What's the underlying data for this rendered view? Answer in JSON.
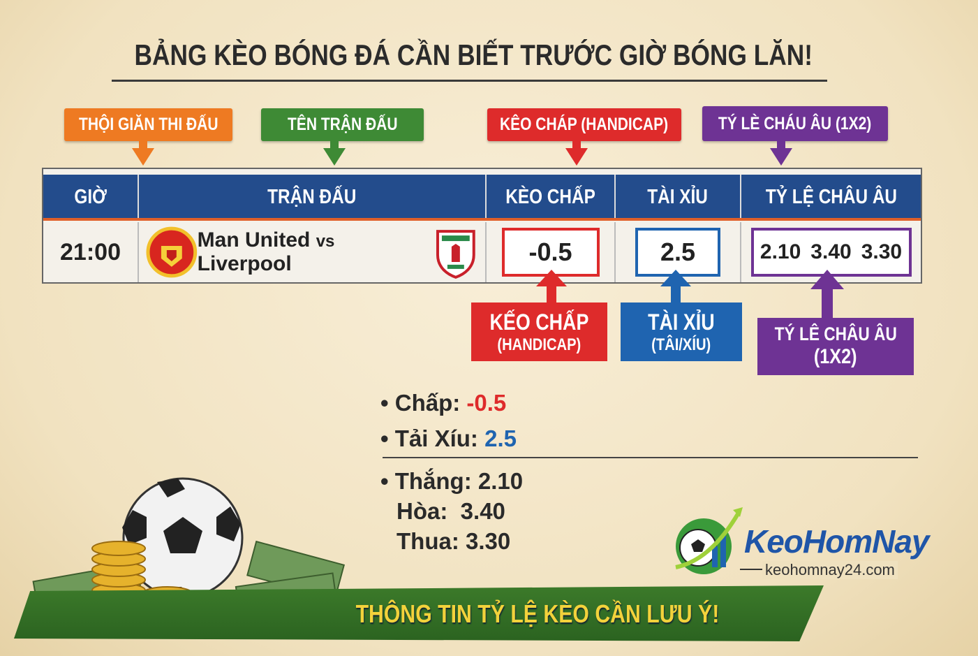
{
  "title": "BẢNG KÈO BÓNG ĐÁ CẦN BIẾT TRƯỚC GIỜ BÓNG LĂN!",
  "top_labels": [
    {
      "text": "THỘI GIĂN THI ĐẤU",
      "color": "#ee7a22"
    },
    {
      "text": "TÊN TRẬN ĐẤU",
      "color": "#3e8a35"
    },
    {
      "text": "KÊO CHÁP (HANDICAP)",
      "color": "#de2b2b"
    },
    {
      "text": "TÝ LÈ CHÁU ÂU (1X2)",
      "color": "#6e3394"
    }
  ],
  "table": {
    "headers": [
      "GIỜ",
      "TRẬN ĐẤU",
      "KÈO CHẤP",
      "TÀI XỈU",
      "TỶ LỆ CHÂU ÂU"
    ],
    "row": {
      "time": "21:00",
      "home": "Man United",
      "vs": "vs",
      "away": "Liverpool",
      "handicap": "-0.5",
      "over_under": "2.5",
      "odds": [
        "2.10",
        "3.40",
        "3.30"
      ]
    }
  },
  "callouts": [
    {
      "line1": "KẾO CHẤP",
      "line2": "(HANDICAP)",
      "color": "#de2b2b"
    },
    {
      "line1": "TÀI XỈU",
      "line2": "(TÂI/XÍU)",
      "color": "#1f64b0"
    },
    {
      "line1": "TÝ LÊ CHÂU ÂU",
      "line2": "(1X2)",
      "color": "#6e3394"
    }
  ],
  "summary": {
    "chap_label": "Chấp:",
    "chap_value": "-0.5",
    "taixiu_label": "Tải Xíu:",
    "taixiu_value": "2.5",
    "thang": "Thắng: 2.10",
    "hoa": "Hòa:  3.40",
    "thua": "Thua: 3.30"
  },
  "logo": {
    "name": "KeoHomNay",
    "url": "keohomnay24.com"
  },
  "banner": "THÔNG TIN TỶ LỆ KÈO CẦN LƯU Ý!",
  "colors": {
    "header_blue": "#234c8c",
    "red": "#de2b2b",
    "blue": "#1f64b0",
    "purple": "#6e3394",
    "green": "#2b6320",
    "gold": "#f3d23b"
  }
}
